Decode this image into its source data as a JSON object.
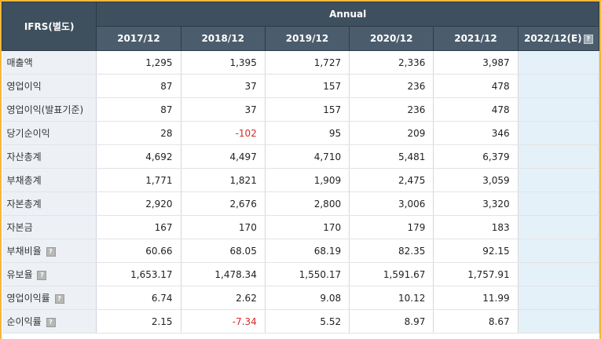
{
  "header": {
    "ifrs_label": "IFRS(별도)",
    "annual_label": "Annual",
    "periods": [
      "2017/12",
      "2018/12",
      "2019/12",
      "2020/12",
      "2021/12"
    ],
    "estimate_period": "2022/12(E)",
    "help_icon": "question-icon"
  },
  "rows": [
    {
      "label": "매출액",
      "values": [
        "1,295",
        "1,395",
        "1,727",
        "2,336",
        "3,987"
      ]
    },
    {
      "label": "영업이익",
      "values": [
        "87",
        "37",
        "157",
        "236",
        "478"
      ]
    },
    {
      "label": "영업이익(발표기준)",
      "values": [
        "87",
        "37",
        "157",
        "236",
        "478"
      ]
    },
    {
      "label": "당기순이익",
      "values": [
        "28",
        "-102",
        "95",
        "209",
        "346"
      ]
    },
    {
      "label": "자산총계",
      "values": [
        "4,692",
        "4,497",
        "4,710",
        "5,481",
        "6,379"
      ]
    },
    {
      "label": "부채총계",
      "values": [
        "1,771",
        "1,821",
        "1,909",
        "2,475",
        "3,059"
      ]
    },
    {
      "label": "자본총계",
      "values": [
        "2,920",
        "2,676",
        "2,800",
        "3,006",
        "3,320"
      ]
    },
    {
      "label": "자본금",
      "values": [
        "167",
        "170",
        "170",
        "179",
        "183"
      ]
    },
    {
      "label": "부채비율",
      "values": [
        "60.66",
        "68.05",
        "68.19",
        "82.35",
        "92.15"
      ]
    },
    {
      "label": "유보율",
      "values": [
        "1,653.17",
        "1,478.34",
        "1,550.17",
        "1,591.67",
        "1,757.91"
      ]
    },
    {
      "label": "영업이익률",
      "values": [
        "6.74",
        "2.62",
        "9.08",
        "10.12",
        "11.99"
      ]
    },
    {
      "label": "순이익률",
      "values": [
        "2.15",
        "-7.34",
        "5.52",
        "8.97",
        "8.67"
      ]
    }
  ],
  "help_rows": [
    8,
    9,
    10,
    11
  ],
  "colors": {
    "header_bg": "#3e4f5e",
    "label_bg": "#edf1f6",
    "estimate_bg": "#e4f1f9",
    "negative": "#d32b2b",
    "frame": "#f4b63a"
  }
}
